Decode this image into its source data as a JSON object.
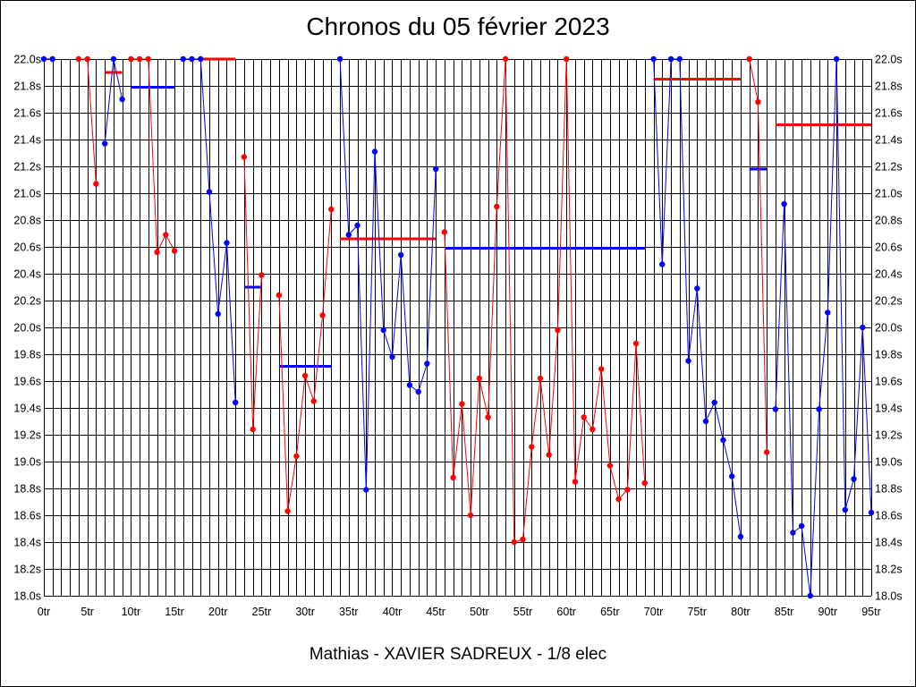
{
  "chart_data": {
    "type": "line",
    "title": "Chronos du 05 février 2023",
    "subtitle": "Mathias - XAVIER SADREUX - 1/8 elec",
    "xlim": [
      0,
      95
    ],
    "ylim": [
      18.0,
      22.0
    ],
    "x_ticks": [
      {
        "value": 0,
        "label": "0tr"
      },
      {
        "value": 5,
        "label": "5tr"
      },
      {
        "value": 10,
        "label": "10tr"
      },
      {
        "value": 15,
        "label": "15tr"
      },
      {
        "value": 20,
        "label": "20tr"
      },
      {
        "value": 25,
        "label": "25tr"
      },
      {
        "value": 30,
        "label": "30tr"
      },
      {
        "value": 35,
        "label": "35tr"
      },
      {
        "value": 40,
        "label": "40tr"
      },
      {
        "value": 45,
        "label": "45tr"
      },
      {
        "value": 50,
        "label": "50tr"
      },
      {
        "value": 55,
        "label": "55tr"
      },
      {
        "value": 60,
        "label": "60tr"
      },
      {
        "value": 65,
        "label": "65tr"
      },
      {
        "value": 70,
        "label": "70tr"
      },
      {
        "value": 75,
        "label": "75tr"
      },
      {
        "value": 80,
        "label": "80tr"
      },
      {
        "value": 85,
        "label": "85tr"
      },
      {
        "value": 90,
        "label": "90tr"
      },
      {
        "value": 95,
        "label": "95tr"
      }
    ],
    "y_ticks": [
      {
        "value": 22.0,
        "label": "22.0s"
      },
      {
        "value": 21.8,
        "label": "21.8s"
      },
      {
        "value": 21.6,
        "label": "21.6s"
      },
      {
        "value": 21.4,
        "label": "21.4s"
      },
      {
        "value": 21.2,
        "label": "21.2s"
      },
      {
        "value": 21.0,
        "label": "21.0s"
      },
      {
        "value": 20.8,
        "label": "20.8s"
      },
      {
        "value": 20.6,
        "label": "20.6s"
      },
      {
        "value": 20.4,
        "label": "20.4s"
      },
      {
        "value": 20.2,
        "label": "20.2s"
      },
      {
        "value": 20.0,
        "label": "20.0s"
      },
      {
        "value": 19.8,
        "label": "19.8s"
      },
      {
        "value": 19.6,
        "label": "19.6s"
      },
      {
        "value": 19.4,
        "label": "19.4s"
      },
      {
        "value": 19.2,
        "label": "19.2s"
      },
      {
        "value": 19.0,
        "label": "19.0s"
      },
      {
        "value": 18.8,
        "label": "18.8s"
      },
      {
        "value": 18.6,
        "label": "18.6s"
      },
      {
        "value": 18.4,
        "label": "18.4s"
      },
      {
        "value": 18.2,
        "label": "18.2s"
      },
      {
        "value": 18.0,
        "label": "18.0s"
      }
    ],
    "grid": true,
    "colors": {
      "red": "#ff0000",
      "blue": "#0000ff",
      "grid": "#000000"
    },
    "segments": [
      {
        "color": "blue",
        "points": [
          [
            0,
            22.0
          ],
          [
            1,
            22.0
          ]
        ]
      },
      {
        "color": "red",
        "points": [
          [
            4,
            22.0
          ],
          [
            5,
            22.0
          ],
          [
            6,
            21.07
          ]
        ]
      },
      {
        "color": "blue",
        "points": [
          [
            7,
            21.37
          ],
          [
            8,
            22.0
          ],
          [
            9,
            21.7
          ]
        ]
      },
      {
        "color": "red",
        "points": [
          [
            10,
            22.0
          ],
          [
            11,
            22.0
          ],
          [
            12,
            22.0
          ],
          [
            13,
            20.56
          ],
          [
            14,
            20.69
          ],
          [
            15,
            20.57
          ]
        ]
      },
      {
        "color": "blue",
        "points": [
          [
            16,
            22.0
          ],
          [
            17,
            22.0
          ],
          [
            18,
            22.0
          ],
          [
            19,
            21.01
          ],
          [
            20,
            20.1
          ],
          [
            21,
            20.63
          ],
          [
            22,
            19.44
          ]
        ]
      },
      {
        "color": "red",
        "points": [
          [
            23,
            21.27
          ],
          [
            24,
            19.24
          ],
          [
            25,
            20.39
          ]
        ]
      },
      {
        "color": "red",
        "points": [
          [
            27,
            20.24
          ],
          [
            28,
            18.63
          ],
          [
            29,
            19.04
          ],
          [
            30,
            19.64
          ],
          [
            31,
            19.45
          ],
          [
            32,
            20.09
          ],
          [
            33,
            20.88
          ]
        ]
      },
      {
        "color": "blue",
        "points": [
          [
            34,
            22.0
          ],
          [
            35,
            20.69
          ],
          [
            36,
            20.76
          ],
          [
            37,
            18.79
          ],
          [
            38,
            21.31
          ],
          [
            39,
            19.98
          ],
          [
            40,
            19.78
          ],
          [
            41,
            20.54
          ],
          [
            42,
            19.57
          ],
          [
            43,
            19.52
          ],
          [
            44,
            19.73
          ],
          [
            45,
            21.18
          ]
        ]
      },
      {
        "color": "red",
        "points": [
          [
            46,
            20.71
          ],
          [
            47,
            18.88
          ],
          [
            48,
            19.43
          ],
          [
            49,
            18.6
          ],
          [
            50,
            19.62
          ],
          [
            51,
            19.33
          ],
          [
            52,
            20.9
          ],
          [
            53,
            22.0
          ],
          [
            54,
            18.4
          ],
          [
            55,
            18.42
          ],
          [
            56,
            19.11
          ],
          [
            57,
            19.62
          ],
          [
            58,
            19.05
          ],
          [
            59,
            19.98
          ],
          [
            60,
            22.0
          ],
          [
            61,
            18.85
          ],
          [
            62,
            19.33
          ],
          [
            63,
            19.24
          ],
          [
            64,
            19.69
          ],
          [
            65,
            18.97
          ],
          [
            66,
            18.72
          ],
          [
            67,
            18.79
          ],
          [
            68,
            19.88
          ],
          [
            69,
            18.84
          ]
        ]
      },
      {
        "color": "blue",
        "points": [
          [
            70,
            22.0
          ],
          [
            71,
            20.47
          ],
          [
            72,
            22.0
          ],
          [
            73,
            22.0
          ],
          [
            74,
            19.75
          ],
          [
            75,
            20.29
          ],
          [
            76,
            19.3
          ],
          [
            77,
            19.44
          ],
          [
            78,
            19.16
          ],
          [
            79,
            18.89
          ],
          [
            80,
            18.44
          ]
        ]
      },
      {
        "color": "red",
        "points": [
          [
            81,
            22.0
          ],
          [
            82,
            21.68
          ],
          [
            83,
            19.07
          ]
        ]
      },
      {
        "color": "blue",
        "points": [
          [
            84,
            19.39
          ],
          [
            85,
            20.92
          ],
          [
            86,
            18.47
          ],
          [
            87,
            18.52
          ],
          [
            88,
            18.0
          ],
          [
            89,
            19.39
          ],
          [
            90,
            20.11
          ],
          [
            91,
            22.0
          ],
          [
            92,
            18.64
          ],
          [
            93,
            18.87
          ],
          [
            94,
            20.0
          ],
          [
            95,
            18.62
          ]
        ]
      }
    ],
    "averages": [
      {
        "color": "red",
        "x": [
          7,
          9
        ],
        "y": 21.9
      },
      {
        "color": "blue",
        "x": [
          10,
          15
        ],
        "y": 21.79
      },
      {
        "color": "red",
        "x": [
          18,
          22
        ],
        "y": 22.0
      },
      {
        "color": "blue",
        "x": [
          23,
          25
        ],
        "y": 20.3
      },
      {
        "color": "blue",
        "x": [
          27,
          33
        ],
        "y": 19.71
      },
      {
        "color": "red",
        "x": [
          34,
          45
        ],
        "y": 20.66
      },
      {
        "color": "blue",
        "x": [
          46,
          69
        ],
        "y": 20.59
      },
      {
        "color": "red",
        "x": [
          70,
          80
        ],
        "y": 21.85
      },
      {
        "color": "blue",
        "x": [
          81,
          83
        ],
        "y": 21.18
      },
      {
        "color": "red",
        "x": [
          84,
          95
        ],
        "y": 21.51
      }
    ]
  }
}
